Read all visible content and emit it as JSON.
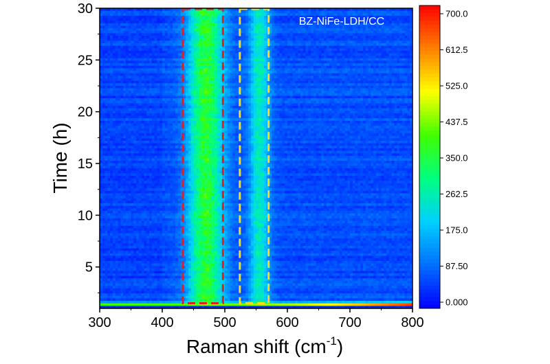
{
  "chart_data": {
    "type": "heatmap",
    "title": "",
    "annotation": "BZ-NiFe-LDH/CC",
    "xlabel": "Raman shift (cm",
    "xlabel_sup": "-1",
    "xlabel_end": ")",
    "ylabel": "Time (h)",
    "xlim": [
      300,
      800
    ],
    "ylim": [
      1,
      30
    ],
    "x_ticks": [
      "300",
      "400",
      "500",
      "600",
      "700",
      "800"
    ],
    "y_ticks": [
      "5",
      "10",
      "15",
      "20",
      "25",
      "30"
    ],
    "colorbar": {
      "min": 0,
      "max": 700,
      "ticks": [
        "0.000",
        "87.50",
        "175.0",
        "262.5",
        "350.0",
        "437.5",
        "525.0",
        "612.5",
        "700.0"
      ],
      "colors": [
        "#0000ff",
        "#0070ff",
        "#00d0ff",
        "#00ff80",
        "#40ff00",
        "#ffff00",
        "#ff8000",
        "#ff0000"
      ]
    },
    "bands": [
      {
        "center": 470,
        "width": 28,
        "intensity": 290
      },
      {
        "center": 555,
        "width": 16,
        "intensity": 185
      }
    ],
    "baseline_intensity": 70,
    "bottom_edge": {
      "time": 1.3,
      "intensity_start": 420,
      "intensity_end": 700
    },
    "highlight_boxes": [
      {
        "x_range": [
          433,
          497
        ],
        "y_range": [
          1.5,
          30
        ],
        "color": "#e02020",
        "style": "dashed"
      },
      {
        "x_range": [
          524,
          570
        ],
        "y_range": [
          1.5,
          30
        ],
        "color": "#f0e020",
        "style": "dashed"
      }
    ]
  }
}
